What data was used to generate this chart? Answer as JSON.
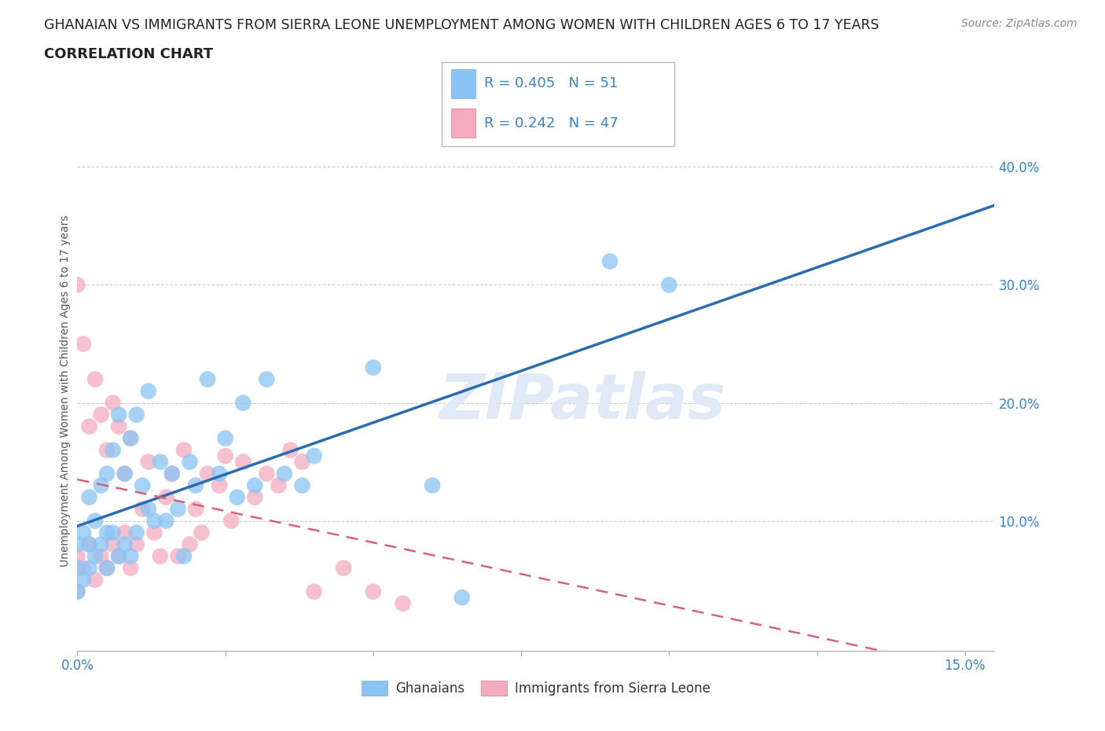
{
  "title_line1": "GHANAIAN VS IMMIGRANTS FROM SIERRA LEONE UNEMPLOYMENT AMONG WOMEN WITH CHILDREN AGES 6 TO 17 YEARS",
  "title_line2": "CORRELATION CHART",
  "source_text": "Source: ZipAtlas.com",
  "ylabel": "Unemployment Among Women with Children Ages 6 to 17 years",
  "xlim": [
    0.0,
    0.155
  ],
  "ylim": [
    -0.01,
    0.43
  ],
  "xticks": [
    0.0,
    0.025,
    0.05,
    0.075,
    0.1,
    0.125,
    0.15
  ],
  "yticks": [
    0.0,
    0.1,
    0.2,
    0.3,
    0.4
  ],
  "ytick_labels": [
    "",
    "10.0%",
    "20.0%",
    "30.0%",
    "40.0%"
  ],
  "gh_color": "#89C4F4",
  "sl_color": "#F4ABBE",
  "gh_line_color": "#2B6CB0",
  "sl_line_color": "#D4637A",
  "ghanaian_R": 0.405,
  "ghanaian_N": 51,
  "sierra_leone_R": 0.242,
  "sierra_leone_N": 47,
  "watermark": "ZIPatlas",
  "background_color": "#ffffff",
  "gh_x": [
    0.0,
    0.0,
    0.0,
    0.001,
    0.001,
    0.002,
    0.002,
    0.002,
    0.003,
    0.003,
    0.004,
    0.004,
    0.005,
    0.005,
    0.005,
    0.006,
    0.006,
    0.007,
    0.007,
    0.008,
    0.008,
    0.009,
    0.009,
    0.01,
    0.01,
    0.011,
    0.012,
    0.012,
    0.013,
    0.014,
    0.015,
    0.016,
    0.017,
    0.018,
    0.019,
    0.02,
    0.022,
    0.024,
    0.025,
    0.027,
    0.028,
    0.03,
    0.032,
    0.035,
    0.038,
    0.04,
    0.05,
    0.06,
    0.065,
    0.09,
    0.1
  ],
  "gh_y": [
    0.04,
    0.06,
    0.08,
    0.05,
    0.09,
    0.06,
    0.08,
    0.12,
    0.07,
    0.1,
    0.08,
    0.13,
    0.06,
    0.09,
    0.14,
    0.09,
    0.16,
    0.07,
    0.19,
    0.08,
    0.14,
    0.07,
    0.17,
    0.09,
    0.19,
    0.13,
    0.11,
    0.21,
    0.1,
    0.15,
    0.1,
    0.14,
    0.11,
    0.07,
    0.15,
    0.13,
    0.22,
    0.14,
    0.17,
    0.12,
    0.2,
    0.13,
    0.22,
    0.14,
    0.13,
    0.155,
    0.23,
    0.13,
    0.035,
    0.32,
    0.3
  ],
  "sl_x": [
    0.0,
    0.0,
    0.0,
    0.001,
    0.001,
    0.002,
    0.002,
    0.003,
    0.003,
    0.004,
    0.004,
    0.005,
    0.005,
    0.006,
    0.006,
    0.007,
    0.007,
    0.008,
    0.008,
    0.009,
    0.009,
    0.01,
    0.011,
    0.012,
    0.013,
    0.014,
    0.015,
    0.016,
    0.017,
    0.018,
    0.019,
    0.02,
    0.021,
    0.022,
    0.024,
    0.025,
    0.026,
    0.028,
    0.03,
    0.032,
    0.034,
    0.036,
    0.038,
    0.04,
    0.045,
    0.05,
    0.055
  ],
  "sl_y": [
    0.04,
    0.07,
    0.3,
    0.06,
    0.25,
    0.08,
    0.18,
    0.05,
    0.22,
    0.07,
    0.19,
    0.06,
    0.16,
    0.08,
    0.2,
    0.07,
    0.18,
    0.09,
    0.14,
    0.06,
    0.17,
    0.08,
    0.11,
    0.15,
    0.09,
    0.07,
    0.12,
    0.14,
    0.07,
    0.16,
    0.08,
    0.11,
    0.09,
    0.14,
    0.13,
    0.155,
    0.1,
    0.15,
    0.12,
    0.14,
    0.13,
    0.16,
    0.15,
    0.04,
    0.06,
    0.04,
    0.03
  ],
  "title_fontsize": 12.5,
  "subtitle_fontsize": 13,
  "axis_label_fontsize": 10,
  "tick_fontsize": 12,
  "legend_fontsize": 13
}
